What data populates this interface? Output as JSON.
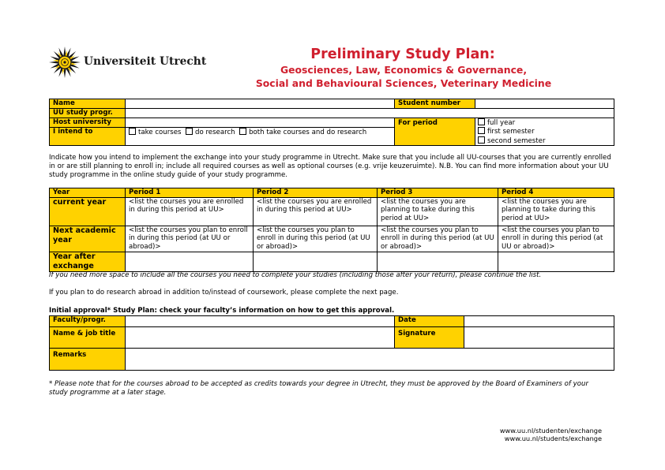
{
  "header": {
    "logo_text": "Universiteit Utrecht",
    "title": "Preliminary Study Plan:",
    "subtitle_line1": "Geosciences, Law, Economics & Governance,",
    "subtitle_line2": "Social and Behavioural Sciences, Veterinary Medicine"
  },
  "info_table": {
    "name_label": "Name",
    "student_number_label": "Student number",
    "uu_study_label": "UU study progr.",
    "host_university_label": "Host university",
    "intend_label": "I intend to",
    "intend_options": [
      "take courses",
      "do research",
      "both take courses and do research"
    ],
    "period_label": "For period",
    "period_options": [
      "full year",
      "first semester",
      "second semester"
    ]
  },
  "instructions": "Indicate how you intend to implement the exchange into your study programme in Utrecht. Make sure that you include all UU-courses that you are currently enrolled in or are still planning to enroll in; include all required courses as well as optional courses (e.g. vrije keuzeruimte). N.B. You can find more information about your UU study programme in the online study guide of your study programme.",
  "plan_table": {
    "headers": [
      "Year",
      "Period 1",
      "Period 2",
      "Period 3",
      "Period 4"
    ],
    "rows": [
      {
        "label": "current year",
        "cells": [
          "<list the courses you are enrolled in during this period at UU>",
          "<list the courses you are enrolled in during this period at UU>",
          "<list the courses you are planning to take during this period at UU>",
          "<list the courses you are planning to take during this period at UU>"
        ]
      },
      {
        "label": "Next academic year",
        "cells": [
          "<list the courses you plan to enroll in during this period (at UU or abroad)>",
          "<list the courses you plan to enroll in during this period (at UU or abroad)>",
          "<list the courses you plan to enroll in during this period (at UU or abroad)>",
          "<list the courses you plan to enroll in during this period (at UU or abroad)>"
        ]
      },
      {
        "label": "Year after exchange",
        "cells": [
          "",
          "",
          "",
          ""
        ]
      }
    ]
  },
  "more_space_note": "If you need more space to include all the courses you need to complete your studies (including those after your return), please continue the list.",
  "research_note": "If you plan to do research abroad in addition to/instead of coursework, please complete the next page.",
  "approval": {
    "heading": "Initial approval* Study Plan: check your faculty’s information on how to get this approval.",
    "faculty_label": "Faculty/progr.",
    "date_label": "Date",
    "name_job_label": "Name & job title",
    "signature_label": "Signature",
    "remarks_label": "Remarks"
  },
  "footnote": "* Please note that for the courses abroad to be accepted as credits towards your degree in Utrecht, they must be approved by the Board of Examiners of your study programme at a later stage.",
  "footer": {
    "link_nl": "www.uu.nl/studenten/exchange",
    "link_en": "www.uu.nl/students/exchange"
  },
  "colors": {
    "accent_red": "#d01f2e",
    "header_yellow": "#ffd200"
  }
}
